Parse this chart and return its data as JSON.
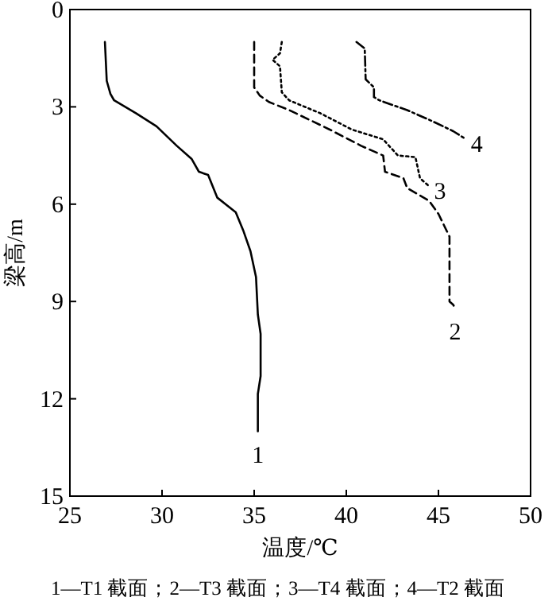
{
  "chart_data": {
    "type": "line",
    "xlabel": "温度/℃",
    "ylabel": "梁高/m",
    "xlim": [
      25,
      50
    ],
    "xticks": [
      25,
      30,
      35,
      40,
      45,
      50
    ],
    "ylim": [
      15,
      0
    ],
    "yticks": [
      0,
      3,
      6,
      9,
      12,
      15
    ],
    "grid": false,
    "marker": "none",
    "series": [
      {
        "name": "1",
        "color": "#000000",
        "line_style": "solid",
        "x": [
          26.9,
          27.0,
          27.2,
          27.4,
          28.6,
          29.7,
          30.8,
          31.6,
          32.0,
          32.5,
          33.0,
          34.0,
          34.4,
          34.8,
          35.1,
          35.2,
          35.35,
          35.35,
          35.2,
          35.2
        ],
        "values": [
          1.0,
          2.2,
          2.6,
          2.8,
          3.2,
          3.6,
          4.2,
          4.6,
          5.0,
          5.1,
          5.8,
          6.25,
          6.8,
          7.45,
          8.25,
          9.4,
          10.0,
          11.3,
          11.85,
          13.0
        ]
      },
      {
        "name": "2",
        "color": "#000000",
        "line_style": "dashed",
        "x": [
          35.0,
          35.0,
          35.3,
          35.8,
          36.9,
          39.1,
          40.8,
          42.0,
          42.1,
          43.1,
          43.3,
          44.5,
          45.0,
          45.6,
          45.6,
          45.8,
          45.9
        ],
        "values": [
          1.0,
          2.4,
          2.65,
          2.85,
          3.1,
          3.7,
          4.2,
          4.5,
          5.0,
          5.2,
          5.5,
          5.9,
          6.3,
          7.0,
          9.0,
          9.1,
          9.2
        ]
      },
      {
        "name": "3",
        "color": "#000000",
        "line_style": "dotted",
        "x": [
          36.5,
          36.4,
          36.0,
          36.4,
          36.5,
          36.9,
          38.6,
          40.3,
          42.0,
          42.8,
          43.75,
          44.0,
          44.5
        ],
        "values": [
          1.0,
          1.35,
          1.55,
          1.75,
          2.55,
          2.8,
          3.2,
          3.7,
          4.0,
          4.5,
          4.55,
          5.2,
          5.45
        ]
      },
      {
        "name": "4",
        "color": "#000000",
        "line_style": "dashdot",
        "x": [
          40.55,
          41.0,
          41.05,
          41.5,
          41.5,
          41.8,
          43.3,
          44.7,
          45.8,
          46.5
        ],
        "values": [
          1.0,
          1.2,
          2.15,
          2.4,
          2.7,
          2.8,
          3.1,
          3.45,
          3.75,
          4.0
        ]
      }
    ],
    "annotations": [
      "1—T1 截面；2—T3 截面；3—T4 截面；4—T2 截面"
    ]
  }
}
